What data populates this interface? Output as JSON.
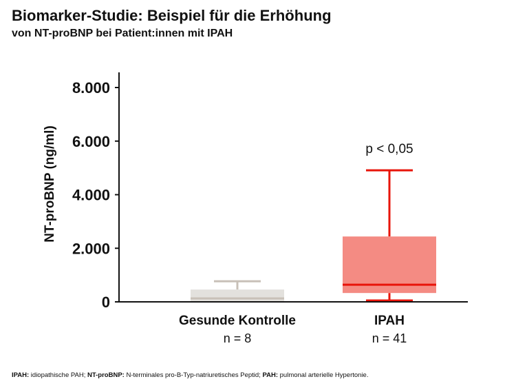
{
  "chart_data": {
    "type": "box",
    "title": "Biomarker-Studie: Beispiel für die Erhöhung",
    "subtitle": "von NT-proBNP bei Patient:innen mit IPAH",
    "ylabel": "NT-proBNP (ng/ml)",
    "ylim": [
      0,
      8000
    ],
    "yticks": [
      0,
      2000,
      4000,
      6000,
      8000
    ],
    "ytick_labels": [
      "0",
      "2.000",
      "4.000",
      "6.000",
      "8.000"
    ],
    "groups": [
      {
        "name": "Gesunde Kontrolle",
        "n_label": "n = 8",
        "min": 0,
        "q1": 0,
        "median": 130,
        "q3": 460,
        "max": 770,
        "box_color": "#e3e1dd",
        "line_color": "#c8c0b8"
      },
      {
        "name": "IPAH",
        "n_label": "n = 41",
        "min": 50,
        "q1": 330,
        "median": 640,
        "q3": 2440,
        "max": 4910,
        "box_color": "#f48b83",
        "line_color": "#e8140a"
      }
    ],
    "annotation": "p < 0,05"
  },
  "footnote": [
    {
      "term": "IPAH:",
      "text": " idiopathische PAH; "
    },
    {
      "term": "NT-proBNP:",
      "text": " N-terminales pro-B-Typ-natriuretisches Peptid; "
    },
    {
      "term": "PAH:",
      "text": " pulmonal arterielle Hypertonie."
    }
  ]
}
